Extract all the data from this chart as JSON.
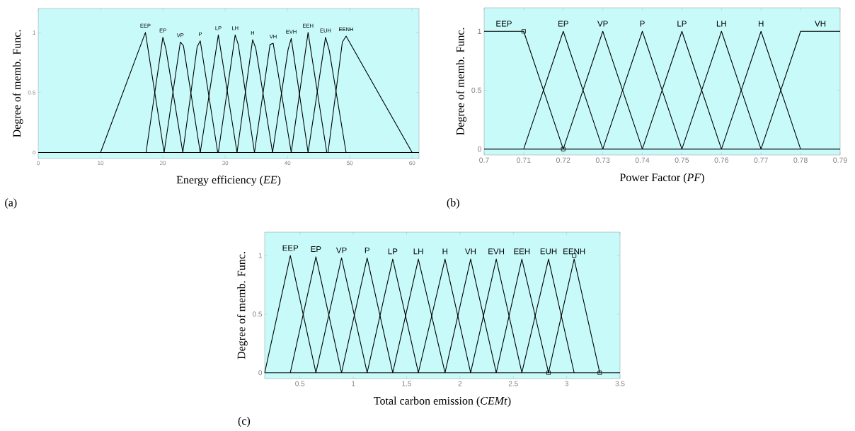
{
  "chart_data": [
    {
      "type": "line",
      "xlabel": "Energy efficiency (*EE*)",
      "ylabel": "Degree of memb. Func.",
      "annotations": [
        "(a)"
      ],
      "xlim": [
        0,
        61.1
      ],
      "ylim": [
        -0.05,
        1.2
      ],
      "xticks": [
        0,
        10,
        20,
        30,
        40,
        50,
        60
      ],
      "yticks": [
        0,
        0.5,
        1
      ],
      "ref_lines": [
        {
          "axis": "y",
          "value": 0,
          "color": "#000000"
        }
      ],
      "series": [
        {
          "name": "EEP",
          "color": "#000000",
          "x": [
            10,
            17.2,
            20.2
          ],
          "values": [
            0,
            1,
            0
          ]
        },
        {
          "name": "EP",
          "color": "#000000",
          "x": [
            17.3,
            20,
            20.5,
            23.2
          ],
          "values": [
            0,
            0.96,
            0.86,
            0
          ]
        },
        {
          "name": "VP",
          "color": "#000000",
          "x": [
            20.2,
            22.8,
            23.3,
            26
          ],
          "values": [
            0,
            0.92,
            0.89,
            0
          ]
        },
        {
          "name": "P",
          "color": "#000000",
          "x": [
            23.2,
            25.5,
            26,
            28.8
          ],
          "values": [
            0,
            0.88,
            0.93,
            0
          ]
        },
        {
          "name": "LP",
          "color": "#000000",
          "x": [
            26,
            28.9,
            31.9
          ],
          "values": [
            0,
            0.98,
            0
          ]
        },
        {
          "name": "LH",
          "color": "#000000",
          "x": [
            28.9,
            31.6,
            32.1,
            34.7
          ],
          "values": [
            0,
            0.98,
            0.9,
            0
          ]
        },
        {
          "name": "H",
          "color": "#000000",
          "x": [
            31.9,
            34.4,
            34.9,
            37.6
          ],
          "values": [
            0,
            0.94,
            0.87,
            0
          ]
        },
        {
          "name": "VH",
          "color": "#000000",
          "x": [
            34.7,
            37.2,
            37.7,
            40.6
          ],
          "values": [
            0,
            0.9,
            0.91,
            0
          ]
        },
        {
          "name": "EVH",
          "color": "#000000",
          "x": [
            37.6,
            40.1,
            40.6,
            43.3
          ],
          "values": [
            0,
            0.86,
            0.95,
            0
          ]
        },
        {
          "name": "EEH",
          "color": "#000000",
          "x": [
            40.6,
            43.3,
            46.3
          ],
          "values": [
            0,
            1,
            0
          ]
        },
        {
          "name": "EUH",
          "color": "#000000",
          "x": [
            43.3,
            46.1,
            46.7,
            49.4
          ],
          "values": [
            0,
            0.96,
            0.85,
            0
          ]
        },
        {
          "name": "EENH",
          "color": "#000000",
          "x": [
            46.5,
            48.8,
            49.4,
            60
          ],
          "values": [
            0,
            0.92,
            0.97,
            0
          ]
        }
      ]
    },
    {
      "type": "line",
      "xlabel": "Power Factor (*PF*)",
      "ylabel": "Degree of memb. Func.",
      "annotations": [
        "(b)"
      ],
      "xlim": [
        0.7,
        0.79
      ],
      "ylim": [
        -0.05,
        1.2
      ],
      "xticks": [
        0.7,
        0.71,
        0.72,
        0.73,
        0.74,
        0.75,
        0.76,
        0.77,
        0.78,
        0.79
      ],
      "yticks": [
        0,
        0.5,
        1
      ],
      "ref_lines": [
        {
          "axis": "y",
          "value": 0,
          "color": "#000000"
        }
      ],
      "series": [
        {
          "name": "EEP",
          "color": "#000000",
          "x": [
            0.7,
            0.71,
            0.72
          ],
          "values": [
            1,
            1,
            0
          ]
        },
        {
          "name": "EP",
          "color": "#000000",
          "x": [
            0.71,
            0.72,
            0.73
          ],
          "values": [
            0,
            1,
            0
          ]
        },
        {
          "name": "VP",
          "color": "#000000",
          "x": [
            0.72,
            0.73,
            0.74
          ],
          "values": [
            0,
            1,
            0
          ]
        },
        {
          "name": "P",
          "color": "#000000",
          "x": [
            0.73,
            0.74,
            0.75
          ],
          "values": [
            0,
            1,
            0
          ]
        },
        {
          "name": "LP",
          "color": "#000000",
          "x": [
            0.74,
            0.75,
            0.76
          ],
          "values": [
            0,
            1,
            0
          ]
        },
        {
          "name": "LH",
          "color": "#000000",
          "x": [
            0.75,
            0.76,
            0.77
          ],
          "values": [
            0,
            1,
            0
          ]
        },
        {
          "name": "H",
          "color": "#000000",
          "x": [
            0.76,
            0.77,
            0.78
          ],
          "values": [
            0,
            1,
            0
          ]
        },
        {
          "name": "VH",
          "color": "#000000",
          "x": [
            0.77,
            0.78,
            0.79
          ],
          "values": [
            0,
            1,
            1
          ]
        },
        {
          "type": "scatter",
          "marker": "square",
          "color": "#000000",
          "x": [
            0.71,
            0.72
          ],
          "values": [
            1,
            0
          ]
        }
      ]
    },
    {
      "type": "line",
      "xlabel": "Total carbon emission (*CEMt*)",
      "ylabel": "Degree of memb. Func.",
      "annotations": [
        "(c)"
      ],
      "xlim": [
        0.17,
        3.5
      ],
      "ylim": [
        -0.05,
        1.2
      ],
      "xticks": [
        0.5,
        1,
        1.5,
        2,
        2.5,
        3,
        3.5
      ],
      "yticks": [
        0,
        0.5,
        1
      ],
      "ref_lines": [
        {
          "axis": "y",
          "value": 0,
          "color": "#000000"
        }
      ],
      "series": [
        {
          "name": "EEP",
          "color": "#000000",
          "x": [
            0.17,
            0.41,
            0.65
          ],
          "values": [
            0,
            1,
            0
          ]
        },
        {
          "name": "EP",
          "color": "#000000",
          "x": [
            0.41,
            0.65,
            0.89
          ],
          "values": [
            0,
            0.99,
            0
          ]
        },
        {
          "name": "VP",
          "color": "#000000",
          "x": [
            0.65,
            0.89,
            1.13
          ],
          "values": [
            0,
            0.98,
            0
          ]
        },
        {
          "name": "P",
          "color": "#000000",
          "x": [
            0.89,
            1.13,
            1.37
          ],
          "values": [
            0,
            0.98,
            0
          ]
        },
        {
          "name": "LP",
          "color": "#000000",
          "x": [
            1.13,
            1.37,
            1.61
          ],
          "values": [
            0,
            0.97,
            0
          ]
        },
        {
          "name": "LH",
          "color": "#000000",
          "x": [
            1.37,
            1.61,
            1.86
          ],
          "values": [
            0,
            0.97,
            0
          ]
        },
        {
          "name": "H",
          "color": "#000000",
          "x": [
            1.61,
            1.86,
            2.1
          ],
          "values": [
            0,
            0.97,
            0
          ]
        },
        {
          "name": "VH",
          "color": "#000000",
          "x": [
            1.86,
            2.1,
            2.34
          ],
          "values": [
            0,
            0.97,
            0
          ]
        },
        {
          "name": "EVH",
          "color": "#000000",
          "x": [
            2.1,
            2.34,
            2.58
          ],
          "values": [
            0,
            0.97,
            0
          ]
        },
        {
          "name": "EEH",
          "color": "#000000",
          "x": [
            2.34,
            2.58,
            2.83
          ],
          "values": [
            0,
            0.97,
            0
          ]
        },
        {
          "name": "EUH",
          "color": "#000000",
          "x": [
            2.58,
            2.83,
            3.07
          ],
          "values": [
            0,
            0.97,
            0
          ]
        },
        {
          "name": "EENH",
          "color": "#000000",
          "x": [
            2.83,
            3.07,
            3.31
          ],
          "values": [
            0,
            0.97,
            0
          ]
        },
        {
          "type": "scatter",
          "marker": "square",
          "color": "#000000",
          "x": [
            3.07,
            2.83,
            3.31
          ],
          "values": [
            1,
            0,
            0
          ]
        }
      ]
    }
  ]
}
